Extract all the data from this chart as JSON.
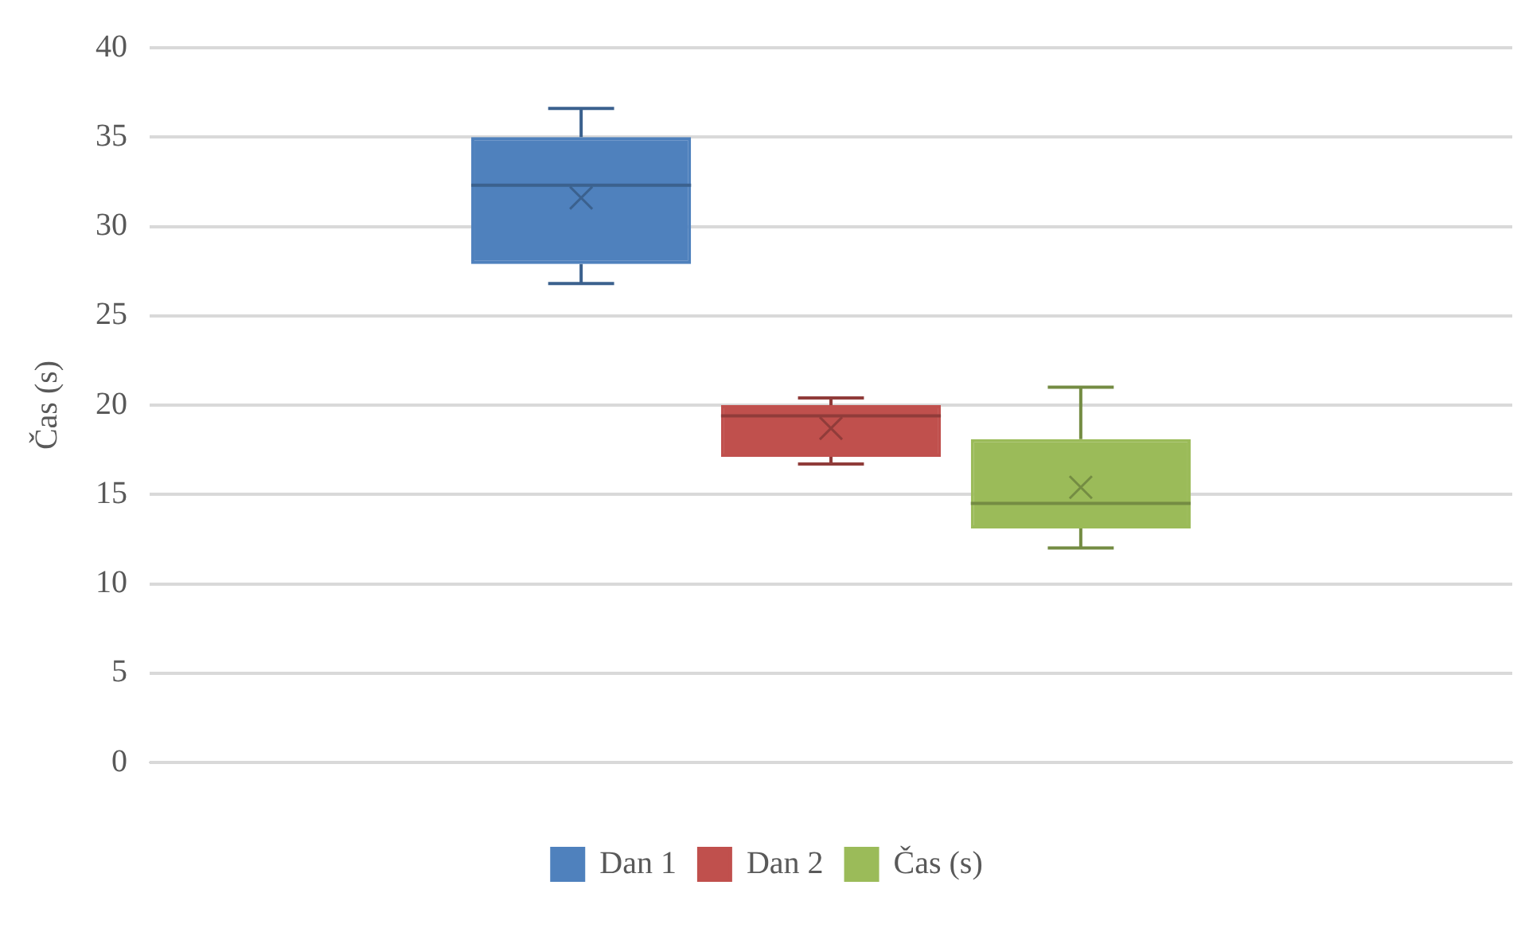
{
  "chart_data": {
    "type": "box",
    "categories": [
      null
    ],
    "ylabel": "Čas (s)",
    "ylim": [
      0,
      40
    ],
    "yticks": [
      0,
      5,
      10,
      15,
      20,
      25,
      30,
      35,
      40
    ],
    "grid": "y",
    "legend": "bottom",
    "tick_labels": "y",
    "series": [
      {
        "name": "Dan 1",
        "color": "#4f81bd",
        "boxes": [
          {
            "low": 26.8,
            "q1": 27.9,
            "median": 32.3,
            "q3": 35.0,
            "high": 36.6,
            "mean": 31.6
          }
        ]
      },
      {
        "name": "Dan 2",
        "color": "#c0504d",
        "boxes": [
          {
            "low": 16.7,
            "q1": 17.1,
            "median": 19.4,
            "q3": 20.0,
            "high": 20.4,
            "mean": 18.7
          }
        ]
      },
      {
        "name": "Čas (s)",
        "color": "#9bbb59",
        "boxes": [
          {
            "low": 12.0,
            "q1": 13.1,
            "median": 14.5,
            "q3": 18.1,
            "high": 21.0,
            "mean": 15.4
          }
        ]
      }
    ]
  }
}
